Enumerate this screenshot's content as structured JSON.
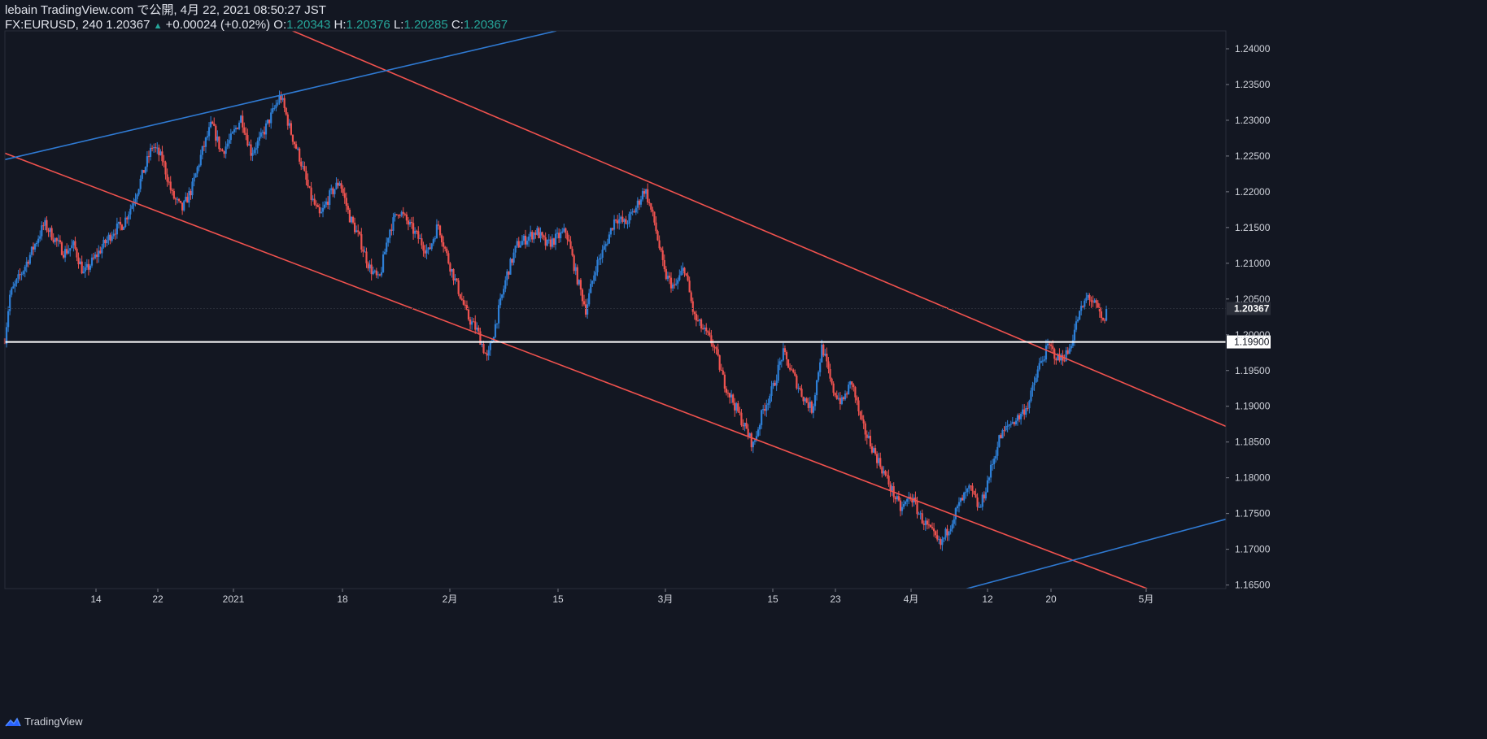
{
  "header": {
    "line1": "lebain TradingView.com で公開, 4月 22, 2021 08:50:27 JST",
    "symbol": "FX:EURUSD, 240 1.20367",
    "change_arrow": "▲",
    "change": "+0.00024 (+0.02%)",
    "o_label": "O:",
    "o_value": "1.20343",
    "h_label": "H:",
    "h_value": "1.20376",
    "l_label": "L:",
    "l_value": "1.20285",
    "c_label": "C:",
    "c_value": "1.20367"
  },
  "footer": {
    "brand": "TradingView"
  },
  "colors": {
    "background": "#131722",
    "up": "#2e7fd6",
    "down": "#ef5350",
    "channel_red": "#f0524e",
    "channel_blue": "#2f7ad3",
    "level_line": "#ffffff",
    "axis_text": "#d1d4dc",
    "grid": "#1e222d"
  },
  "chart_data": {
    "type": "candlestick",
    "symbol": "FX:EURUSD",
    "interval": "240",
    "x_ticks": [
      "14",
      "22",
      "2021",
      "18",
      "2月",
      "15",
      "3月",
      "15",
      "23",
      "4月",
      "12",
      "20",
      "5月"
    ],
    "y_ticks": [
      "1.24000",
      "1.23500",
      "1.23000",
      "1.22500",
      "1.22000",
      "1.21500",
      "1.21000",
      "1.20500",
      "1.20000",
      "1.19500",
      "1.19000",
      "1.18500",
      "1.18000",
      "1.17500",
      "1.17000",
      "1.16500"
    ],
    "ylim": [
      1.1645,
      1.2425
    ],
    "current_price_label": "1.20367",
    "current_price": 1.20367,
    "horizontal_level_label": "1.19900",
    "horizontal_level": 1.199,
    "price_path": {
      "x": [
        0,
        0.5,
        2,
        4,
        5,
        6,
        7,
        8,
        9,
        10,
        11,
        12,
        13,
        14,
        15,
        16,
        17,
        18,
        19,
        20,
        21,
        22,
        23,
        24,
        25,
        26,
        27,
        28,
        29,
        30,
        31,
        32,
        33,
        34,
        35,
        36,
        37,
        38,
        39,
        40,
        41,
        42,
        43,
        44,
        45,
        46,
        47,
        48,
        49,
        50,
        51,
        52,
        53,
        54,
        55,
        56,
        57,
        58,
        59,
        60,
        61,
        62,
        63,
        64,
        65,
        66,
        67,
        68,
        69,
        70,
        71,
        72,
        73,
        74,
        75,
        76,
        77,
        78,
        79,
        80,
        81,
        82,
        83,
        84,
        85,
        86,
        87,
        88,
        89,
        90,
        91,
        92,
        93,
        94,
        95,
        96,
        97,
        98,
        99,
        100,
        101,
        102,
        103,
        104,
        105,
        106,
        107,
        108
      ],
      "price": [
        1.1995,
        1.2055,
        1.2095,
        1.2155,
        1.2135,
        1.2115,
        1.2125,
        1.2085,
        1.2105,
        1.2125,
        1.2145,
        1.2155,
        1.2185,
        1.2225,
        1.2265,
        1.2245,
        1.2195,
        1.2175,
        1.2205,
        1.2255,
        1.2295,
        1.2255,
        1.2275,
        1.2305,
        1.2255,
        1.2275,
        1.2305,
        1.2335,
        1.2285,
        1.2245,
        1.2195,
        1.2165,
        1.2195,
        1.2215,
        1.2165,
        1.2135,
        1.2095,
        1.2075,
        1.2145,
        1.2175,
        1.2155,
        1.2135,
        1.2115,
        1.2155,
        1.2105,
        1.2065,
        1.2025,
        1.2005,
        1.1965,
        1.2025,
        1.2085,
        1.2125,
        1.2135,
        1.2145,
        1.2125,
        1.2135,
        1.2145,
        1.2085,
        1.2035,
        1.2095,
        1.2125,
        1.2165,
        1.2155,
        1.2175,
        1.2205,
        1.2155,
        1.2085,
        1.2065,
        1.2095,
        1.2025,
        1.2005,
        1.1985,
        1.1935,
        1.1905,
        1.1875,
        1.1845,
        1.1895,
        1.1925,
        1.1975,
        1.1945,
        1.1915,
        1.1895,
        1.1985,
        1.1925,
        1.1905,
        1.1935,
        1.1875,
        1.1845,
        1.1815,
        1.1785,
        1.1755,
        1.1775,
        1.1745,
        1.1725,
        1.1705,
        1.1735,
        1.1765,
        1.1785,
        1.1755,
        1.1805,
        1.1855,
        1.1875,
        1.1885,
        1.1905,
        1.1955,
        1.1985,
        1.1965,
        1.1975
      ]
    },
    "price_path_recent": {
      "x": [
        108,
        109,
        110,
        110.5,
        111,
        111.5,
        112
      ],
      "price": [
        1.1975,
        1.2025,
        1.2055,
        1.2045,
        1.2035,
        1.2015,
        1.2037
      ]
    },
    "trendlines": [
      {
        "name": "",
        "color": "red",
        "x": [
          0,
          124
        ],
        "price": [
          1.2254,
          1.1603
        ]
      },
      {
        "name": "",
        "color": "red",
        "x": [
          27,
          124
        ],
        "price": [
          1.2438,
          1.1872
        ]
      },
      {
        "name": "",
        "color": "blue",
        "x": [
          0,
          56
        ],
        "price": [
          1.2245,
          1.2425
        ]
      },
      {
        "name": "",
        "color": "blue",
        "x": [
          95,
          124
        ],
        "price": [
          1.1635,
          1.1742
        ]
      }
    ],
    "x_domain": [
      0,
      124
    ],
    "grid": false,
    "legend": "none"
  }
}
